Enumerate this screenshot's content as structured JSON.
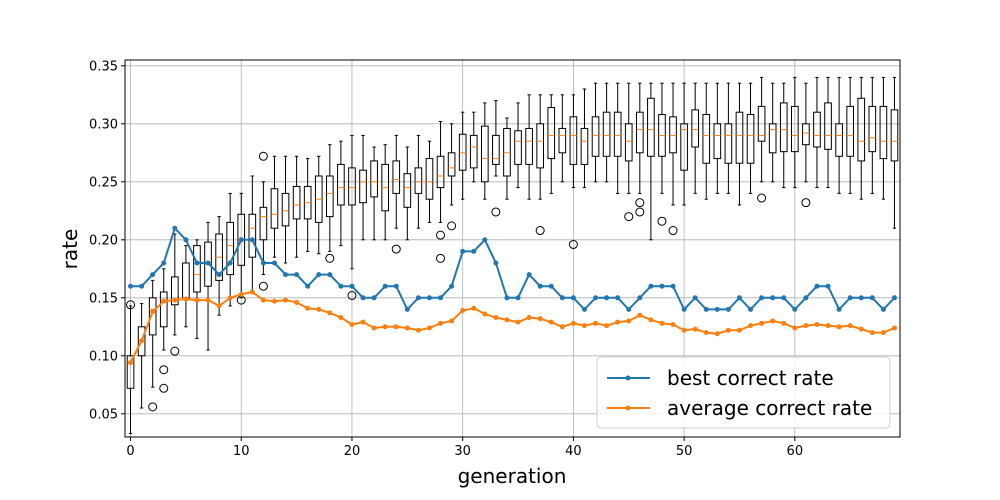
{
  "chart_data": {
    "type": "line",
    "xlabel": "generation",
    "ylabel": "rate",
    "xlim": [
      -0.5,
      69.5
    ],
    "ylim": [
      0.03,
      0.355
    ],
    "grid": true,
    "legend_position": "bottom-right",
    "x_ticks": [
      0,
      10,
      20,
      30,
      40,
      50,
      60
    ],
    "x_tick_labels": [
      "0",
      "10",
      "20",
      "30",
      "40",
      "50",
      "60"
    ],
    "y_ticks": [
      0.05,
      0.1,
      0.15,
      0.2,
      0.25,
      0.3,
      0.35
    ],
    "y_tick_labels": [
      "0.05",
      "0.10",
      "0.15",
      "0.20",
      "0.25",
      "0.30",
      "0.35"
    ],
    "x": [
      0,
      1,
      2,
      3,
      4,
      5,
      6,
      7,
      8,
      9,
      10,
      11,
      12,
      13,
      14,
      15,
      16,
      17,
      18,
      19,
      20,
      21,
      22,
      23,
      24,
      25,
      26,
      27,
      28,
      29,
      30,
      31,
      32,
      33,
      34,
      35,
      36,
      37,
      38,
      39,
      40,
      41,
      42,
      43,
      44,
      45,
      46,
      47,
      48,
      49,
      50,
      51,
      52,
      53,
      54,
      55,
      56,
      57,
      58,
      59,
      60,
      61,
      62,
      63,
      64,
      65,
      66,
      67,
      68,
      69
    ],
    "series": [
      {
        "name": "best correct rate",
        "color": "#1f77b4",
        "values": [
          0.16,
          0.16,
          0.17,
          0.18,
          0.21,
          0.2,
          0.18,
          0.18,
          0.17,
          0.18,
          0.2,
          0.2,
          0.18,
          0.18,
          0.17,
          0.17,
          0.16,
          0.17,
          0.17,
          0.16,
          0.16,
          0.15,
          0.15,
          0.16,
          0.16,
          0.14,
          0.15,
          0.15,
          0.15,
          0.16,
          0.19,
          0.19,
          0.2,
          0.18,
          0.15,
          0.15,
          0.17,
          0.16,
          0.16,
          0.15,
          0.15,
          0.14,
          0.15,
          0.15,
          0.15,
          0.14,
          0.15,
          0.16,
          0.16,
          0.16,
          0.14,
          0.15,
          0.14,
          0.14,
          0.14,
          0.15,
          0.14,
          0.15,
          0.15,
          0.15,
          0.14,
          0.15,
          0.16,
          0.16,
          0.14,
          0.15,
          0.15,
          0.15,
          0.14,
          0.15
        ]
      },
      {
        "name": "average correct rate",
        "color": "#ff7f0e",
        "values": [
          0.094,
          0.113,
          0.138,
          0.147,
          0.148,
          0.149,
          0.148,
          0.148,
          0.143,
          0.15,
          0.153,
          0.155,
          0.148,
          0.147,
          0.148,
          0.146,
          0.141,
          0.14,
          0.137,
          0.133,
          0.127,
          0.129,
          0.124,
          0.125,
          0.125,
          0.124,
          0.122,
          0.124,
          0.128,
          0.13,
          0.139,
          0.141,
          0.136,
          0.133,
          0.131,
          0.129,
          0.133,
          0.132,
          0.129,
          0.125,
          0.128,
          0.126,
          0.128,
          0.126,
          0.129,
          0.13,
          0.135,
          0.131,
          0.128,
          0.127,
          0.122,
          0.123,
          0.12,
          0.119,
          0.122,
          0.122,
          0.126,
          0.128,
          0.13,
          0.128,
          0.124,
          0.126,
          0.127,
          0.126,
          0.125,
          0.126,
          0.123,
          0.12,
          0.12,
          0.124
        ]
      }
    ],
    "boxplots": [
      {
        "x": 0,
        "wlo": 0.033,
        "q1": 0.072,
        "med": 0.095,
        "q3": 0.1,
        "whi": 0.143,
        "fliers": [
          0.144
        ]
      },
      {
        "x": 1,
        "wlo": 0.055,
        "q1": 0.1,
        "med": 0.113,
        "q3": 0.125,
        "whi": 0.145,
        "fliers": []
      },
      {
        "x": 2,
        "wlo": 0.073,
        "q1": 0.118,
        "med": 0.14,
        "q3": 0.15,
        "whi": 0.165,
        "fliers": [
          0.056
        ]
      },
      {
        "x": 3,
        "wlo": 0.105,
        "q1": 0.125,
        "med": 0.148,
        "q3": 0.155,
        "whi": 0.175,
        "fliers": [
          0.088,
          0.072
        ]
      },
      {
        "x": 4,
        "wlo": 0.118,
        "q1": 0.144,
        "med": 0.148,
        "q3": 0.168,
        "whi": 0.205,
        "fliers": [
          0.104
        ]
      },
      {
        "x": 5,
        "wlo": 0.125,
        "q1": 0.15,
        "med": 0.15,
        "q3": 0.18,
        "whi": 0.195,
        "fliers": []
      },
      {
        "x": 6,
        "wlo": 0.115,
        "q1": 0.155,
        "med": 0.17,
        "q3": 0.195,
        "whi": 0.2,
        "fliers": []
      },
      {
        "x": 7,
        "wlo": 0.105,
        "q1": 0.16,
        "med": 0.18,
        "q3": 0.198,
        "whi": 0.215,
        "fliers": []
      },
      {
        "x": 8,
        "wlo": 0.135,
        "q1": 0.165,
        "med": 0.185,
        "q3": 0.205,
        "whi": 0.22,
        "fliers": []
      },
      {
        "x": 9,
        "wlo": 0.143,
        "q1": 0.17,
        "med": 0.195,
        "q3": 0.215,
        "whi": 0.24,
        "fliers": []
      },
      {
        "x": 10,
        "wlo": 0.15,
        "q1": 0.178,
        "med": 0.2,
        "q3": 0.222,
        "whi": 0.24,
        "fliers": [
          0.148
        ]
      },
      {
        "x": 11,
        "wlo": 0.155,
        "q1": 0.185,
        "med": 0.21,
        "q3": 0.222,
        "whi": 0.255,
        "fliers": []
      },
      {
        "x": 12,
        "wlo": 0.17,
        "q1": 0.2,
        "med": 0.22,
        "q3": 0.228,
        "whi": 0.25,
        "fliers": [
          0.272,
          0.16
        ]
      },
      {
        "x": 13,
        "wlo": 0.185,
        "q1": 0.21,
        "med": 0.222,
        "q3": 0.244,
        "whi": 0.272,
        "fliers": []
      },
      {
        "x": 14,
        "wlo": 0.18,
        "q1": 0.212,
        "med": 0.225,
        "q3": 0.24,
        "whi": 0.272,
        "fliers": []
      },
      {
        "x": 15,
        "wlo": 0.185,
        "q1": 0.218,
        "med": 0.23,
        "q3": 0.246,
        "whi": 0.272,
        "fliers": []
      },
      {
        "x": 16,
        "wlo": 0.19,
        "q1": 0.218,
        "med": 0.232,
        "q3": 0.246,
        "whi": 0.27,
        "fliers": []
      },
      {
        "x": 17,
        "wlo": 0.188,
        "q1": 0.215,
        "med": 0.235,
        "q3": 0.255,
        "whi": 0.272,
        "fliers": []
      },
      {
        "x": 18,
        "wlo": 0.19,
        "q1": 0.22,
        "med": 0.24,
        "q3": 0.255,
        "whi": 0.282,
        "fliers": [
          0.184
        ]
      },
      {
        "x": 19,
        "wlo": 0.195,
        "q1": 0.23,
        "med": 0.245,
        "q3": 0.265,
        "whi": 0.285,
        "fliers": []
      },
      {
        "x": 20,
        "wlo": 0.175,
        "q1": 0.23,
        "med": 0.245,
        "q3": 0.262,
        "whi": 0.29,
        "fliers": [
          0.152
        ]
      },
      {
        "x": 21,
        "wlo": 0.2,
        "q1": 0.232,
        "med": 0.25,
        "q3": 0.26,
        "whi": 0.29,
        "fliers": []
      },
      {
        "x": 22,
        "wlo": 0.2,
        "q1": 0.237,
        "med": 0.25,
        "q3": 0.268,
        "whi": 0.28,
        "fliers": []
      },
      {
        "x": 23,
        "wlo": 0.2,
        "q1": 0.225,
        "med": 0.245,
        "q3": 0.265,
        "whi": 0.282,
        "fliers": []
      },
      {
        "x": 24,
        "wlo": 0.21,
        "q1": 0.24,
        "med": 0.252,
        "q3": 0.268,
        "whi": 0.29,
        "fliers": [
          0.192
        ]
      },
      {
        "x": 25,
        "wlo": 0.2,
        "q1": 0.228,
        "med": 0.245,
        "q3": 0.257,
        "whi": 0.28,
        "fliers": []
      },
      {
        "x": 26,
        "wlo": 0.21,
        "q1": 0.24,
        "med": 0.25,
        "q3": 0.262,
        "whi": 0.29,
        "fliers": []
      },
      {
        "x": 27,
        "wlo": 0.215,
        "q1": 0.235,
        "med": 0.25,
        "q3": 0.27,
        "whi": 0.285,
        "fliers": []
      },
      {
        "x": 28,
        "wlo": 0.215,
        "q1": 0.245,
        "med": 0.255,
        "q3": 0.272,
        "whi": 0.302,
        "fliers": [
          0.204,
          0.184
        ]
      },
      {
        "x": 29,
        "wlo": 0.23,
        "q1": 0.255,
        "med": 0.262,
        "q3": 0.275,
        "whi": 0.3,
        "fliers": [
          0.212
        ]
      },
      {
        "x": 30,
        "wlo": 0.235,
        "q1": 0.26,
        "med": 0.275,
        "q3": 0.291,
        "whi": 0.31,
        "fliers": []
      },
      {
        "x": 31,
        "wlo": 0.25,
        "q1": 0.262,
        "med": 0.28,
        "q3": 0.29,
        "whi": 0.31,
        "fliers": []
      },
      {
        "x": 32,
        "wlo": 0.235,
        "q1": 0.25,
        "med": 0.27,
        "q3": 0.298,
        "whi": 0.318,
        "fliers": []
      },
      {
        "x": 33,
        "wlo": 0.255,
        "q1": 0.265,
        "med": 0.27,
        "q3": 0.29,
        "whi": 0.32,
        "fliers": [
          0.224
        ]
      },
      {
        "x": 34,
        "wlo": 0.235,
        "q1": 0.255,
        "med": 0.275,
        "q3": 0.296,
        "whi": 0.305,
        "fliers": []
      },
      {
        "x": 35,
        "wlo": 0.245,
        "q1": 0.265,
        "med": 0.285,
        "q3": 0.294,
        "whi": 0.318,
        "fliers": []
      },
      {
        "x": 36,
        "wlo": 0.235,
        "q1": 0.265,
        "med": 0.285,
        "q3": 0.296,
        "whi": 0.325,
        "fliers": []
      },
      {
        "x": 37,
        "wlo": 0.235,
        "q1": 0.262,
        "med": 0.285,
        "q3": 0.3,
        "whi": 0.325,
        "fliers": [
          0.208
        ]
      },
      {
        "x": 38,
        "wlo": 0.24,
        "q1": 0.27,
        "med": 0.29,
        "q3": 0.314,
        "whi": 0.325,
        "fliers": []
      },
      {
        "x": 39,
        "wlo": 0.25,
        "q1": 0.275,
        "med": 0.29,
        "q3": 0.296,
        "whi": 0.325,
        "fliers": []
      },
      {
        "x": 40,
        "wlo": 0.245,
        "q1": 0.265,
        "med": 0.29,
        "q3": 0.306,
        "whi": 0.325,
        "fliers": [
          0.196
        ]
      },
      {
        "x": 41,
        "wlo": 0.245,
        "q1": 0.265,
        "med": 0.285,
        "q3": 0.296,
        "whi": 0.33,
        "fliers": []
      },
      {
        "x": 42,
        "wlo": 0.25,
        "q1": 0.272,
        "med": 0.29,
        "q3": 0.306,
        "whi": 0.335,
        "fliers": []
      },
      {
        "x": 43,
        "wlo": 0.25,
        "q1": 0.272,
        "med": 0.29,
        "q3": 0.31,
        "whi": 0.335,
        "fliers": []
      },
      {
        "x": 44,
        "wlo": 0.24,
        "q1": 0.272,
        "med": 0.29,
        "q3": 0.31,
        "whi": 0.335,
        "fliers": []
      },
      {
        "x": 45,
        "wlo": 0.24,
        "q1": 0.268,
        "med": 0.285,
        "q3": 0.3,
        "whi": 0.335,
        "fliers": [
          0.22
        ]
      },
      {
        "x": 46,
        "wlo": 0.24,
        "q1": 0.275,
        "med": 0.295,
        "q3": 0.31,
        "whi": 0.335,
        "fliers": [
          0.232,
          0.224
        ]
      },
      {
        "x": 47,
        "wlo": 0.2,
        "q1": 0.272,
        "med": 0.295,
        "q3": 0.322,
        "whi": 0.335,
        "fliers": []
      },
      {
        "x": 48,
        "wlo": 0.24,
        "q1": 0.272,
        "med": 0.29,
        "q3": 0.308,
        "whi": 0.335,
        "fliers": [
          0.216
        ]
      },
      {
        "x": 49,
        "wlo": 0.23,
        "q1": 0.275,
        "med": 0.29,
        "q3": 0.306,
        "whi": 0.335,
        "fliers": [
          0.208
        ]
      },
      {
        "x": 50,
        "wlo": 0.23,
        "q1": 0.26,
        "med": 0.295,
        "q3": 0.3,
        "whi": 0.335,
        "fliers": []
      },
      {
        "x": 51,
        "wlo": 0.24,
        "q1": 0.28,
        "med": 0.295,
        "q3": 0.312,
        "whi": 0.335,
        "fliers": []
      },
      {
        "x": 52,
        "wlo": 0.235,
        "q1": 0.266,
        "med": 0.29,
        "q3": 0.308,
        "whi": 0.335,
        "fliers": []
      },
      {
        "x": 53,
        "wlo": 0.24,
        "q1": 0.27,
        "med": 0.29,
        "q3": 0.3,
        "whi": 0.335,
        "fliers": []
      },
      {
        "x": 54,
        "wlo": 0.24,
        "q1": 0.266,
        "med": 0.29,
        "q3": 0.3,
        "whi": 0.335,
        "fliers": []
      },
      {
        "x": 55,
        "wlo": 0.23,
        "q1": 0.266,
        "med": 0.29,
        "q3": 0.31,
        "whi": 0.335,
        "fliers": []
      },
      {
        "x": 56,
        "wlo": 0.24,
        "q1": 0.266,
        "med": 0.29,
        "q3": 0.308,
        "whi": 0.335,
        "fliers": []
      },
      {
        "x": 57,
        "wlo": 0.25,
        "q1": 0.285,
        "med": 0.29,
        "q3": 0.315,
        "whi": 0.34,
        "fliers": [
          0.236
        ]
      },
      {
        "x": 58,
        "wlo": 0.25,
        "q1": 0.275,
        "med": 0.295,
        "q3": 0.3,
        "whi": 0.335,
        "fliers": []
      },
      {
        "x": 59,
        "wlo": 0.245,
        "q1": 0.276,
        "med": 0.295,
        "q3": 0.318,
        "whi": 0.335,
        "fliers": []
      },
      {
        "x": 60,
        "wlo": 0.245,
        "q1": 0.276,
        "med": 0.29,
        "q3": 0.315,
        "whi": 0.34,
        "fliers": []
      },
      {
        "x": 61,
        "wlo": 0.25,
        "q1": 0.282,
        "med": 0.292,
        "q3": 0.3,
        "whi": 0.335,
        "fliers": [
          0.232
        ]
      },
      {
        "x": 62,
        "wlo": 0.245,
        "q1": 0.28,
        "med": 0.29,
        "q3": 0.31,
        "whi": 0.34,
        "fliers": []
      },
      {
        "x": 63,
        "wlo": 0.245,
        "q1": 0.278,
        "med": 0.29,
        "q3": 0.318,
        "whi": 0.34,
        "fliers": []
      },
      {
        "x": 64,
        "wlo": 0.24,
        "q1": 0.272,
        "med": 0.29,
        "q3": 0.3,
        "whi": 0.34,
        "fliers": []
      },
      {
        "x": 65,
        "wlo": 0.24,
        "q1": 0.272,
        "med": 0.29,
        "q3": 0.315,
        "whi": 0.34,
        "fliers": []
      },
      {
        "x": 66,
        "wlo": 0.235,
        "q1": 0.268,
        "med": 0.285,
        "q3": 0.322,
        "whi": 0.34,
        "fliers": []
      },
      {
        "x": 67,
        "wlo": 0.24,
        "q1": 0.276,
        "med": 0.288,
        "q3": 0.315,
        "whi": 0.34,
        "fliers": []
      },
      {
        "x": 68,
        "wlo": 0.235,
        "q1": 0.27,
        "med": 0.285,
        "q3": 0.315,
        "whi": 0.34,
        "fliers": []
      },
      {
        "x": 69,
        "wlo": 0.21,
        "q1": 0.268,
        "med": 0.285,
        "q3": 0.312,
        "whi": 0.34,
        "fliers": []
      }
    ],
    "box_median_color": "#ff7f0e"
  }
}
